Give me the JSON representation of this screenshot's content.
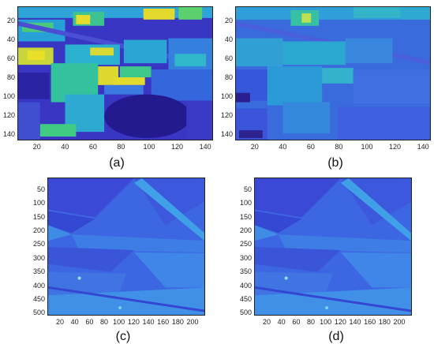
{
  "panels": [
    {
      "label": "(a)",
      "y_ticks": [
        "20",
        "40",
        "60",
        "80",
        "100",
        "120",
        "140"
      ],
      "x_ticks": [
        "20",
        "40",
        "60",
        "80",
        "100",
        "120",
        "140"
      ]
    },
    {
      "label": "(b)",
      "y_ticks": [
        "20",
        "40",
        "60",
        "80",
        "100",
        "120",
        "140"
      ],
      "x_ticks": [
        "20",
        "40",
        "60",
        "80",
        "100",
        "120",
        "140"
      ]
    },
    {
      "label": "(c)",
      "y_ticks": [
        "50",
        "100",
        "150",
        "200",
        "250",
        "300",
        "350",
        "400",
        "450",
        "500"
      ],
      "x_ticks": [
        "20",
        "40",
        "60",
        "80",
        "100",
        "120",
        "140",
        "160",
        "180",
        "200"
      ]
    },
    {
      "label": "(d)",
      "y_ticks": [
        "50",
        "100",
        "150",
        "200",
        "250",
        "300",
        "350",
        "400",
        "450",
        "500"
      ],
      "x_ticks": [
        "20",
        "40",
        "60",
        "80",
        "100",
        "120",
        "140",
        "160",
        "180",
        "200"
      ]
    }
  ],
  "colors": {
    "deep_blue": "#2a1f9e",
    "blue": "#3f5ee8",
    "teal": "#22a6d6",
    "green": "#38c48c",
    "yellow": "#e8e02a"
  }
}
